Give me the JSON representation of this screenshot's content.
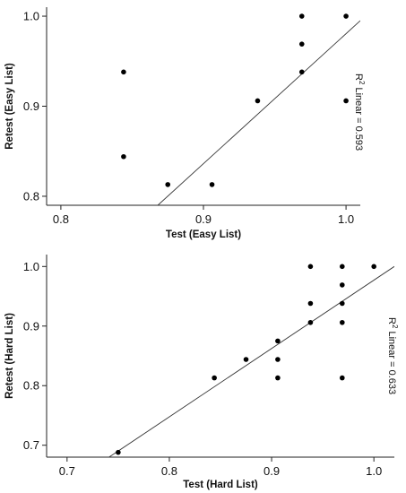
{
  "chart_data": [
    {
      "type": "scatter",
      "xlabel": "Test (Easy List)",
      "ylabel": "Retest (Easy List)",
      "xlim": [
        0.79,
        1.01
      ],
      "ylim": [
        0.79,
        1.01
      ],
      "xticks": [
        "0.8",
        "0.9",
        "1.0"
      ],
      "yticks": [
        "0.8",
        "0.9",
        "1.0"
      ],
      "points": [
        {
          "x": 0.844,
          "y": 0.938
        },
        {
          "x": 0.844,
          "y": 0.844
        },
        {
          "x": 0.875,
          "y": 0.813
        },
        {
          "x": 0.906,
          "y": 0.813
        },
        {
          "x": 0.938,
          "y": 0.906
        },
        {
          "x": 0.969,
          "y": 1.0
        },
        {
          "x": 0.969,
          "y": 0.969
        },
        {
          "x": 0.969,
          "y": 0.938
        },
        {
          "x": 1.0,
          "y": 1.0
        },
        {
          "x": 1.0,
          "y": 0.906
        }
      ],
      "fit_line": {
        "x1": 0.868,
        "y1": 0.79,
        "x2": 1.01,
        "y2": 0.995
      },
      "r2_prefix": "R",
      "r2_sup": "2",
      "r2_rest": " Linear = 0.593",
      "grid": false
    },
    {
      "type": "scatter",
      "xlabel": "Test (Hard List)",
      "ylabel": "Retest (Hard List)",
      "xlim": [
        0.68,
        1.02
      ],
      "ylim": [
        0.68,
        1.02
      ],
      "xticks": [
        "0.7",
        "0.8",
        "0.9",
        "1.0"
      ],
      "yticks": [
        "0.7",
        "0.8",
        "0.9",
        "1.0"
      ],
      "points": [
        {
          "x": 0.75,
          "y": 0.688
        },
        {
          "x": 0.844,
          "y": 0.813
        },
        {
          "x": 0.875,
          "y": 0.844
        },
        {
          "x": 0.906,
          "y": 0.875
        },
        {
          "x": 0.906,
          "y": 0.844
        },
        {
          "x": 0.906,
          "y": 0.813
        },
        {
          "x": 0.938,
          "y": 1.0
        },
        {
          "x": 0.938,
          "y": 0.938
        },
        {
          "x": 0.938,
          "y": 0.906
        },
        {
          "x": 0.969,
          "y": 1.0
        },
        {
          "x": 0.969,
          "y": 0.969
        },
        {
          "x": 0.969,
          "y": 0.938
        },
        {
          "x": 0.969,
          "y": 0.906
        },
        {
          "x": 0.969,
          "y": 0.813
        },
        {
          "x": 1.0,
          "y": 1.0
        }
      ],
      "fit_line": {
        "x1": 0.741,
        "y1": 0.68,
        "x2": 1.02,
        "y2": 1.0
      },
      "r2_prefix": "R",
      "r2_sup": "2",
      "r2_rest": " Linear = 0.633",
      "grid": false
    }
  ]
}
